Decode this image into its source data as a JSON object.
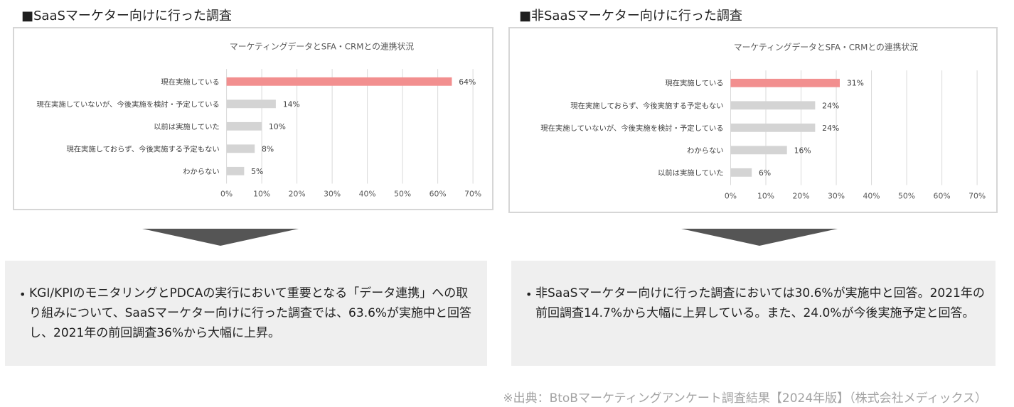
{
  "sections": [
    {
      "heading": "■SaaSマーケター向けに行った調査",
      "summary": "KGI/KPIのモニタリングとPDCAの実行において重要となる「データ連携」への取り組みについて、SaaSマーケター向けに行った調査では、63.6%が実施中と回答し、2021年の前回調査36%から大幅に上昇。"
    },
    {
      "heading": "■非SaaSマーケター向けに行った調査",
      "summary": "非SaaSマーケター向けに行った調査においては30.6%が実施中と回答。2021年の前回調査14.7%から大幅に上昇している。また、24.0%が今後実施予定と回答。"
    }
  ],
  "bullet": "•",
  "source": "※出典：BtoBマーケティングアンケート調査結果【2024年版】（株式会社メディックス）",
  "colors": {
    "highlight": "#f28f8f",
    "bar": "#d4d4d4",
    "grid": "#d9d9d9",
    "arrow": "#555555"
  },
  "chart_data": [
    {
      "type": "bar",
      "orientation": "horizontal",
      "title": "マーケティングデータとSFA・CRMとの連携状況",
      "categories": [
        "現在実施している",
        "現在実施していないが、今後実施を検討・予定している",
        "以前は実施していた",
        "現在実施しておらず、今後実施する予定もない",
        "わからない"
      ],
      "values": [
        64,
        14,
        10,
        8,
        5
      ],
      "value_labels": [
        "64%",
        "14%",
        "10%",
        "8%",
        "5%"
      ],
      "highlight_index": 0,
      "xlim": [
        0,
        70
      ],
      "xticks": [
        "0%",
        "10%",
        "20%",
        "30%",
        "40%",
        "50%",
        "60%",
        "70%"
      ],
      "grid": true
    },
    {
      "type": "bar",
      "orientation": "horizontal",
      "title": "マーケティングデータとSFA・CRMとの連携状況",
      "categories": [
        "現在実施している",
        "現在実施しておらず、今後実施する予定もない",
        "現在実施していないが、今後実施を検討・予定している",
        "わからない",
        "以前は実施していた"
      ],
      "values": [
        31,
        24,
        24,
        16,
        6
      ],
      "value_labels": [
        "31%",
        "24%",
        "24%",
        "16%",
        "6%"
      ],
      "highlight_index": 0,
      "xlim": [
        0,
        70
      ],
      "xticks": [
        "0%",
        "10%",
        "20%",
        "30%",
        "40%",
        "50%",
        "60%",
        "70%"
      ],
      "grid": true
    }
  ]
}
